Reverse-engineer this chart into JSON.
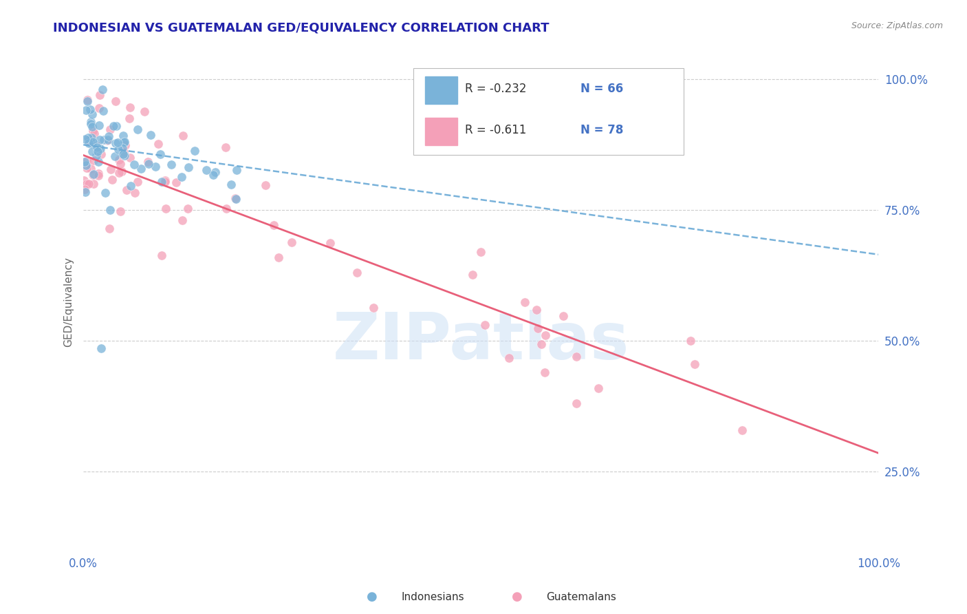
{
  "title": "INDONESIAN VS GUATEMALAN GED/EQUIVALENCY CORRELATION CHART",
  "source": "Source: ZipAtlas.com",
  "ylabel": "GED/Equivalency",
  "title_color": "#2222aa",
  "source_color": "#888888",
  "blue_color": "#7ab3d9",
  "pink_color": "#f4a0b8",
  "pink_line_color": "#e8607a",
  "blue_line_color": "#6aaad6",
  "axis_label_color": "#4472c4",
  "background_color": "#ffffff",
  "grid_color": "#cccccc",
  "xlim": [
    0.0,
    1.0
  ],
  "ylim": [
    0.1,
    1.05
  ],
  "yticks": [
    0.25,
    0.5,
    0.75,
    1.0
  ],
  "ytick_labels": [
    "25.0%",
    "50.0%",
    "75.0%",
    "100.0%"
  ],
  "xtick_labels": [
    "0.0%",
    "100.0%"
  ],
  "indo_line_x0": 0.0,
  "indo_line_y0": 0.875,
  "indo_line_x1": 1.0,
  "indo_line_y1": 0.665,
  "guat_line_x0": 0.0,
  "guat_line_y0": 0.855,
  "guat_line_x1": 1.0,
  "guat_line_y1": 0.285,
  "legend_r1": "R = -0.232",
  "legend_n1": "N = 66",
  "legend_r2": "R = -0.611",
  "legend_n2": "N = 78",
  "legend_label1": "Indonesians",
  "legend_label2": "Guatemalans",
  "watermark": "ZIPatlas"
}
